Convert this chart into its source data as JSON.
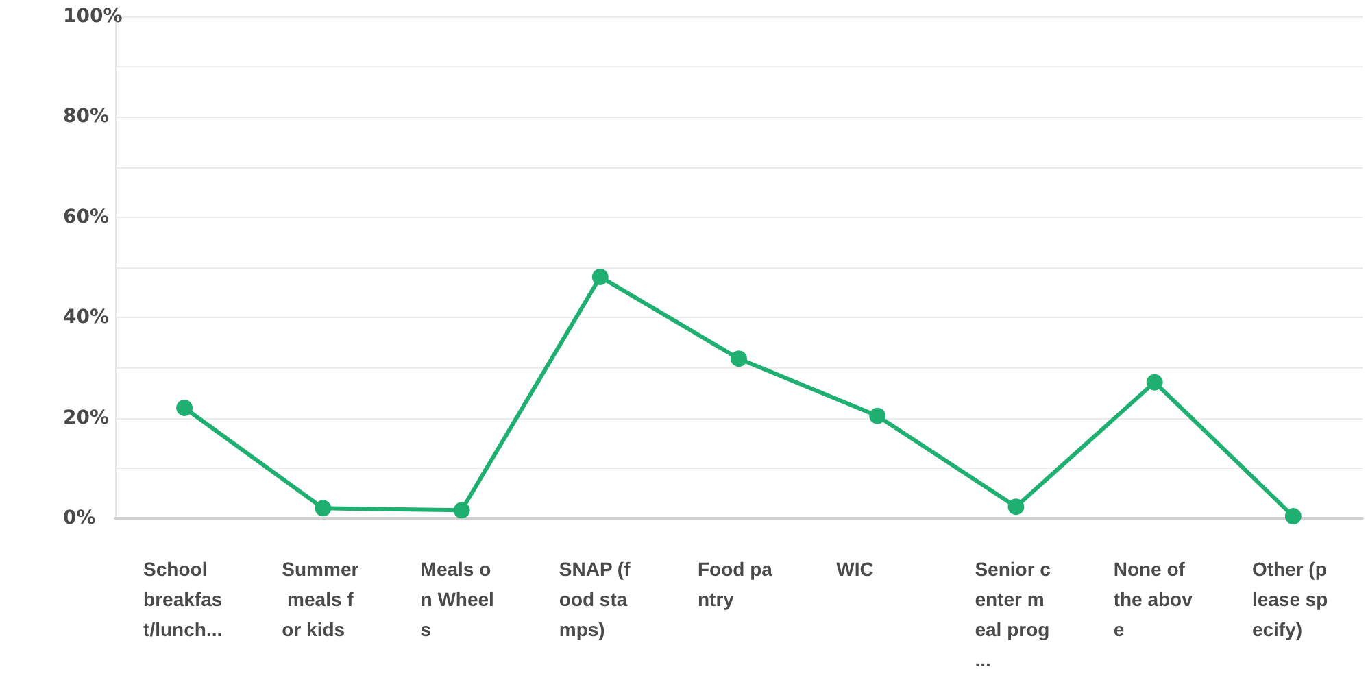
{
  "chart_data": {
    "type": "line",
    "categories": [
      "School breakfast/lunch...",
      "Summer meals for kids",
      "Meals on Wheels",
      "SNAP (food stamps)",
      "Food pantry",
      "WIC",
      "Senior center meal prog...",
      "None of the above",
      "Other (please specify)"
    ],
    "values": [
      22.0,
      2.0,
      1.6,
      48.1,
      31.8,
      20.4,
      2.3,
      27.1,
      0.4
    ],
    "color": "#1fb071",
    "marker": "circle",
    "line_style": "solid",
    "grid": "y",
    "ylim": [
      0,
      100
    ],
    "yticks": [
      {
        "value": 0,
        "label": "0%"
      },
      {
        "value": 10,
        "label": null
      },
      {
        "value": 20,
        "label": "20%"
      },
      {
        "value": 30,
        "label": null
      },
      {
        "value": 40,
        "label": "40%"
      },
      {
        "value": 50,
        "label": null
      },
      {
        "value": 60,
        "label": "60%"
      },
      {
        "value": 70,
        "label": null
      },
      {
        "value": 80,
        "label": "80%"
      },
      {
        "value": 90,
        "label": null
      },
      {
        "value": 100,
        "label": "100%"
      }
    ]
  }
}
